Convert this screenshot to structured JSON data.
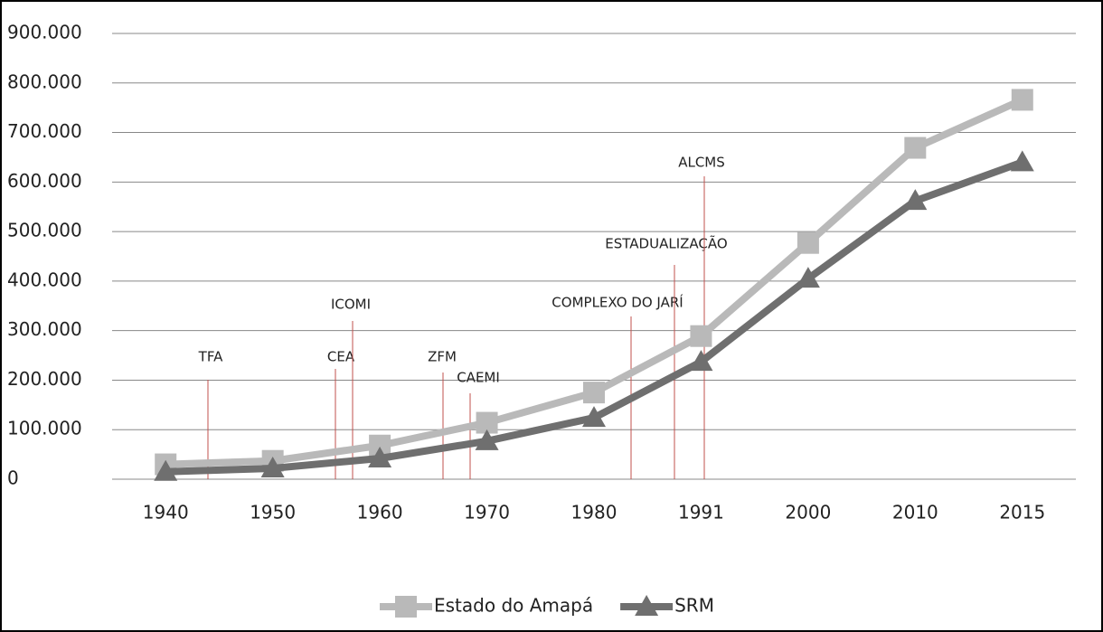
{
  "chart_data": {
    "type": "line",
    "categories": [
      "1940",
      "1950",
      "1960",
      "1970",
      "1980",
      "1991",
      "2000",
      "2010",
      "2015"
    ],
    "series": [
      {
        "name": "Estado do Amapá",
        "color": "#b9b9b9",
        "marker": "square",
        "values": [
          30000,
          37000,
          68000,
          114000,
          175000,
          289000,
          477000,
          669000,
          766000
        ]
      },
      {
        "name": "SRM",
        "color": "#6f6f6f",
        "marker": "triangle",
        "values": [
          15000,
          22000,
          42000,
          77000,
          124000,
          237000,
          405000,
          562000,
          640000
        ]
      }
    ],
    "ylim": [
      0,
      900000
    ],
    "yticks": [
      0,
      {
        "value": 100000,
        "label": "100.000"
      },
      {
        "value": 200000,
        "label": "200.000"
      },
      {
        "value": 300000,
        "label": "300.000"
      },
      {
        "value": 400000,
        "label": "400.000"
      },
      {
        "value": 500000,
        "label": "500.000"
      },
      {
        "value": 600000,
        "label": "600.000"
      },
      {
        "value": 700000,
        "label": "700.000"
      },
      {
        "value": 800000,
        "label": "800.000"
      },
      {
        "value": 900000,
        "label": "900.000"
      }
    ],
    "grid": true,
    "legend": "bottom",
    "annotations": [
      "TFA",
      "CEA",
      "ICOMI",
      "ZFM",
      "CAEMI",
      "COMPLEXO DO JARÍ",
      "ESTADUALIZAÇÃO",
      "ALCMS"
    ]
  }
}
